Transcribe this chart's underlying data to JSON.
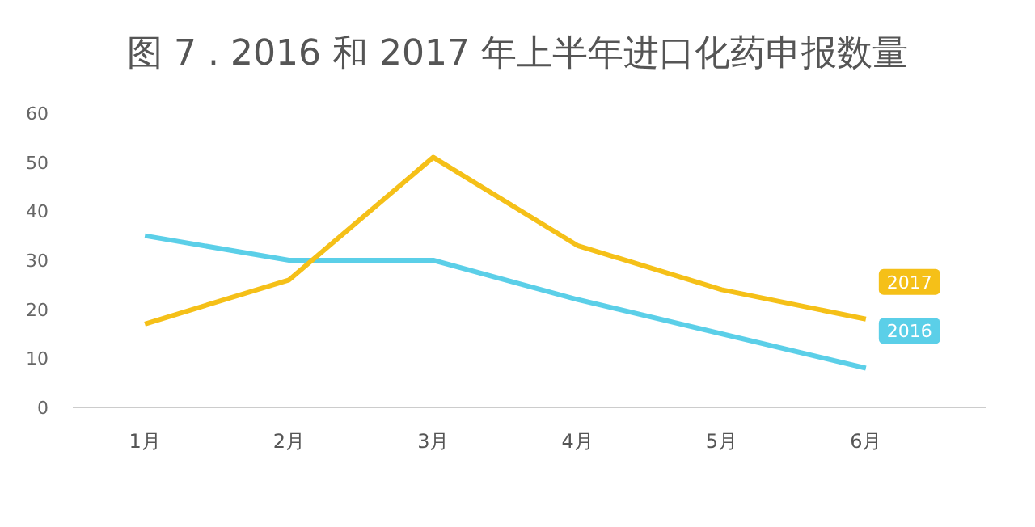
{
  "chart_data": {
    "type": "line",
    "title": "图 7 . 2016 和 2017 年上半年进口化药申报数量",
    "categories": [
      "1月",
      "2月",
      "3月",
      "4月",
      "5月",
      "6月"
    ],
    "series": [
      {
        "name": "2016",
        "color": "#5bcfe8",
        "values": [
          35,
          30,
          30,
          22,
          15,
          8
        ]
      },
      {
        "name": "2017",
        "color": "#f5c018",
        "values": [
          17,
          26,
          51,
          33,
          24,
          18
        ]
      }
    ],
    "ylim": [
      0,
      60
    ],
    "yticks": [
      0,
      10,
      20,
      30,
      40,
      50,
      60
    ],
    "grid": false
  }
}
